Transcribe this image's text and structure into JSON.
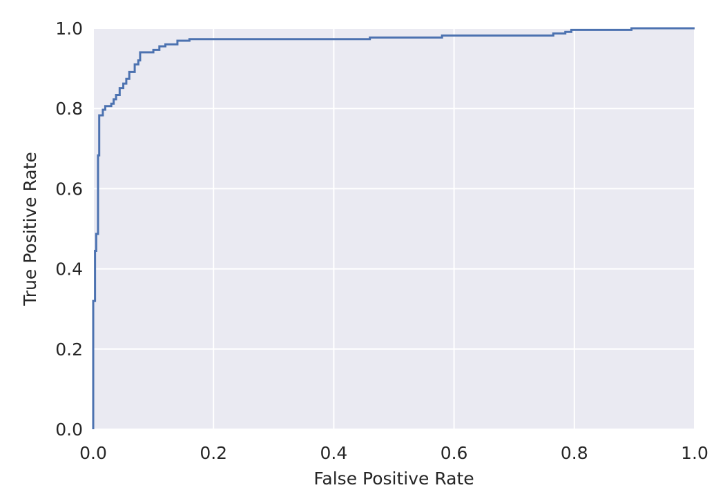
{
  "chart_data": {
    "type": "line",
    "title": "",
    "xlabel": "False Positive Rate",
    "ylabel": "True Positive Rate",
    "xlim": [
      0.0,
      1.0
    ],
    "ylim": [
      0.0,
      1.0
    ],
    "x_ticks": [
      "0.0",
      "0.2",
      "0.4",
      "0.6",
      "0.8",
      "1.0"
    ],
    "y_ticks": [
      "0.0",
      "0.2",
      "0.4",
      "0.6",
      "0.8",
      "1.0"
    ],
    "grid": true,
    "background_color": "#EAEAF2",
    "grid_color": "#FFFFFF",
    "series": [
      {
        "color": "#4C72B0",
        "points": [
          [
            0.0,
            0.0
          ],
          [
            0.0,
            0.32
          ],
          [
            0.003,
            0.32
          ],
          [
            0.003,
            0.445
          ],
          [
            0.005,
            0.445
          ],
          [
            0.005,
            0.487
          ],
          [
            0.008,
            0.487
          ],
          [
            0.008,
            0.683
          ],
          [
            0.01,
            0.683
          ],
          [
            0.01,
            0.783
          ],
          [
            0.016,
            0.783
          ],
          [
            0.016,
            0.797
          ],
          [
            0.02,
            0.797
          ],
          [
            0.02,
            0.806
          ],
          [
            0.03,
            0.806
          ],
          [
            0.03,
            0.812
          ],
          [
            0.034,
            0.812
          ],
          [
            0.034,
            0.823
          ],
          [
            0.038,
            0.823
          ],
          [
            0.038,
            0.834
          ],
          [
            0.044,
            0.834
          ],
          [
            0.044,
            0.851
          ],
          [
            0.05,
            0.851
          ],
          [
            0.05,
            0.862
          ],
          [
            0.055,
            0.862
          ],
          [
            0.055,
            0.874
          ],
          [
            0.06,
            0.874
          ],
          [
            0.06,
            0.891
          ],
          [
            0.069,
            0.891
          ],
          [
            0.069,
            0.91
          ],
          [
            0.075,
            0.91
          ],
          [
            0.075,
            0.92
          ],
          [
            0.078,
            0.92
          ],
          [
            0.078,
            0.94
          ],
          [
            0.1,
            0.94
          ],
          [
            0.1,
            0.946
          ],
          [
            0.11,
            0.946
          ],
          [
            0.11,
            0.955
          ],
          [
            0.12,
            0.955
          ],
          [
            0.12,
            0.96
          ],
          [
            0.14,
            0.96
          ],
          [
            0.14,
            0.969
          ],
          [
            0.16,
            0.969
          ],
          [
            0.16,
            0.973
          ],
          [
            0.46,
            0.973
          ],
          [
            0.46,
            0.977
          ],
          [
            0.58,
            0.977
          ],
          [
            0.58,
            0.982
          ],
          [
            0.765,
            0.982
          ],
          [
            0.765,
            0.987
          ],
          [
            0.785,
            0.987
          ],
          [
            0.785,
            0.991
          ],
          [
            0.795,
            0.991
          ],
          [
            0.795,
            0.996
          ],
          [
            0.895,
            0.996
          ],
          [
            0.895,
            1.0
          ],
          [
            1.0,
            1.0
          ]
        ]
      }
    ]
  }
}
